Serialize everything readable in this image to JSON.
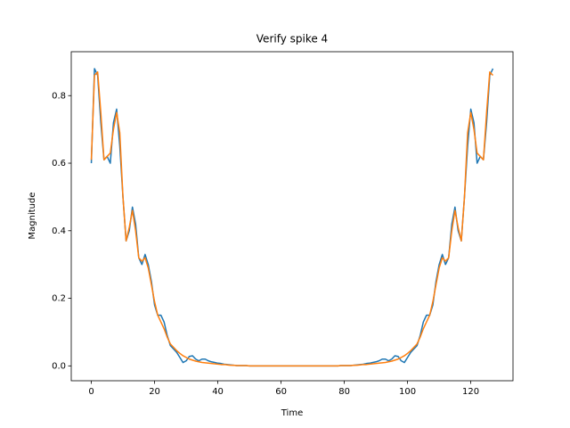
{
  "chart_data": {
    "type": "line",
    "title": "Verify spike 4",
    "x_label": "Time",
    "y_label": "Magnitude",
    "x": [
      0,
      1,
      2,
      3,
      4,
      5,
      6,
      7,
      8,
      9,
      10,
      11,
      12,
      13,
      14,
      15,
      16,
      17,
      18,
      19,
      20,
      21,
      22,
      23,
      24,
      25,
      26,
      27,
      28,
      29,
      30,
      31,
      32,
      33,
      34,
      35,
      36,
      37,
      38,
      39,
      40,
      41,
      42,
      43,
      44,
      45,
      46,
      47,
      48,
      49,
      50,
      51,
      52,
      53,
      54,
      55,
      56,
      57,
      58,
      59,
      60,
      61,
      62,
      63,
      64,
      65,
      66,
      67,
      68,
      69,
      70,
      71,
      72,
      73,
      74,
      75,
      76,
      77,
      78,
      79,
      80,
      81,
      82,
      83,
      84,
      85,
      86,
      87,
      88,
      89,
      90,
      91,
      92,
      93,
      94,
      95,
      96,
      97,
      98,
      99,
      100,
      101,
      102,
      103,
      104,
      105,
      106,
      107,
      108,
      109,
      110,
      111,
      112,
      113,
      114,
      115,
      116,
      117,
      118,
      119,
      120,
      121,
      122,
      123,
      124,
      125,
      126,
      127
    ],
    "series": [
      {
        "color": "#1f77b4",
        "values": [
          0.6,
          0.88,
          0.86,
          0.72,
          0.61,
          0.62,
          0.6,
          0.72,
          0.76,
          0.65,
          0.5,
          0.37,
          0.4,
          0.47,
          0.42,
          0.32,
          0.3,
          0.33,
          0.3,
          0.25,
          0.18,
          0.15,
          0.15,
          0.13,
          0.09,
          0.06,
          0.05,
          0.04,
          0.025,
          0.01,
          0.015,
          0.028,
          0.03,
          0.02,
          0.015,
          0.02,
          0.02,
          0.015,
          0.012,
          0.01,
          0.008,
          0.007,
          0.005,
          0.004,
          0.003,
          0.002,
          0.001,
          0.001,
          0.001,
          0.001,
          0,
          0,
          0,
          0,
          0,
          0,
          0,
          0,
          0,
          0,
          0,
          0,
          0,
          0,
          0,
          0,
          0,
          0,
          0,
          0,
          0,
          0,
          0,
          0,
          0,
          0,
          0,
          0,
          0,
          0.001,
          0.001,
          0.001,
          0.001,
          0.002,
          0.003,
          0.004,
          0.005,
          0.007,
          0.008,
          0.01,
          0.012,
          0.015,
          0.02,
          0.02,
          0.015,
          0.02,
          0.03,
          0.028,
          0.015,
          0.01,
          0.025,
          0.04,
          0.05,
          0.06,
          0.09,
          0.13,
          0.15,
          0.15,
          0.18,
          0.25,
          0.3,
          0.33,
          0.3,
          0.32,
          0.42,
          0.47,
          0.4,
          0.37,
          0.5,
          0.65,
          0.76,
          0.72,
          0.6,
          0.62,
          0.61,
          0.72,
          0.86,
          0.88
        ]
      },
      {
        "color": "#ff7f0e",
        "values": [
          0.61,
          0.86,
          0.87,
          0.75,
          0.61,
          0.62,
          0.63,
          0.7,
          0.75,
          0.69,
          0.5,
          0.37,
          0.41,
          0.46,
          0.4,
          0.32,
          0.31,
          0.32,
          0.29,
          0.24,
          0.19,
          0.15,
          0.13,
          0.11,
          0.085,
          0.065,
          0.055,
          0.045,
          0.037,
          0.03,
          0.025,
          0.02,
          0.017,
          0.014,
          0.012,
          0.01,
          0.009,
          0.008,
          0.007,
          0.006,
          0.005,
          0.004,
          0.004,
          0.003,
          0.002,
          0.002,
          0.001,
          0.001,
          0.001,
          0.001,
          0,
          0,
          0,
          0,
          0,
          0,
          0,
          0,
          0,
          0,
          0,
          0,
          0,
          0,
          0,
          0,
          0,
          0,
          0,
          0,
          0,
          0,
          0,
          0,
          0,
          0,
          0,
          0,
          0,
          0.001,
          0.001,
          0.001,
          0.001,
          0.002,
          0.002,
          0.003,
          0.004,
          0.004,
          0.005,
          0.006,
          0.007,
          0.008,
          0.009,
          0.01,
          0.012,
          0.014,
          0.017,
          0.02,
          0.025,
          0.03,
          0.037,
          0.045,
          0.055,
          0.065,
          0.085,
          0.11,
          0.13,
          0.15,
          0.19,
          0.24,
          0.29,
          0.32,
          0.31,
          0.32,
          0.4,
          0.46,
          0.41,
          0.37,
          0.5,
          0.69,
          0.75,
          0.7,
          0.63,
          0.62,
          0.61,
          0.75,
          0.87,
          0.86
        ]
      }
    ],
    "xlim": [
      -6.35,
      133.35
    ],
    "ylim": [
      -0.044,
      0.93
    ],
    "xticks": [
      0,
      20,
      40,
      60,
      80,
      100,
      120
    ],
    "yticks": [
      {
        "value": 0,
        "label": "0.0"
      },
      0.2,
      0.4,
      0.6,
      0.8
    ]
  }
}
